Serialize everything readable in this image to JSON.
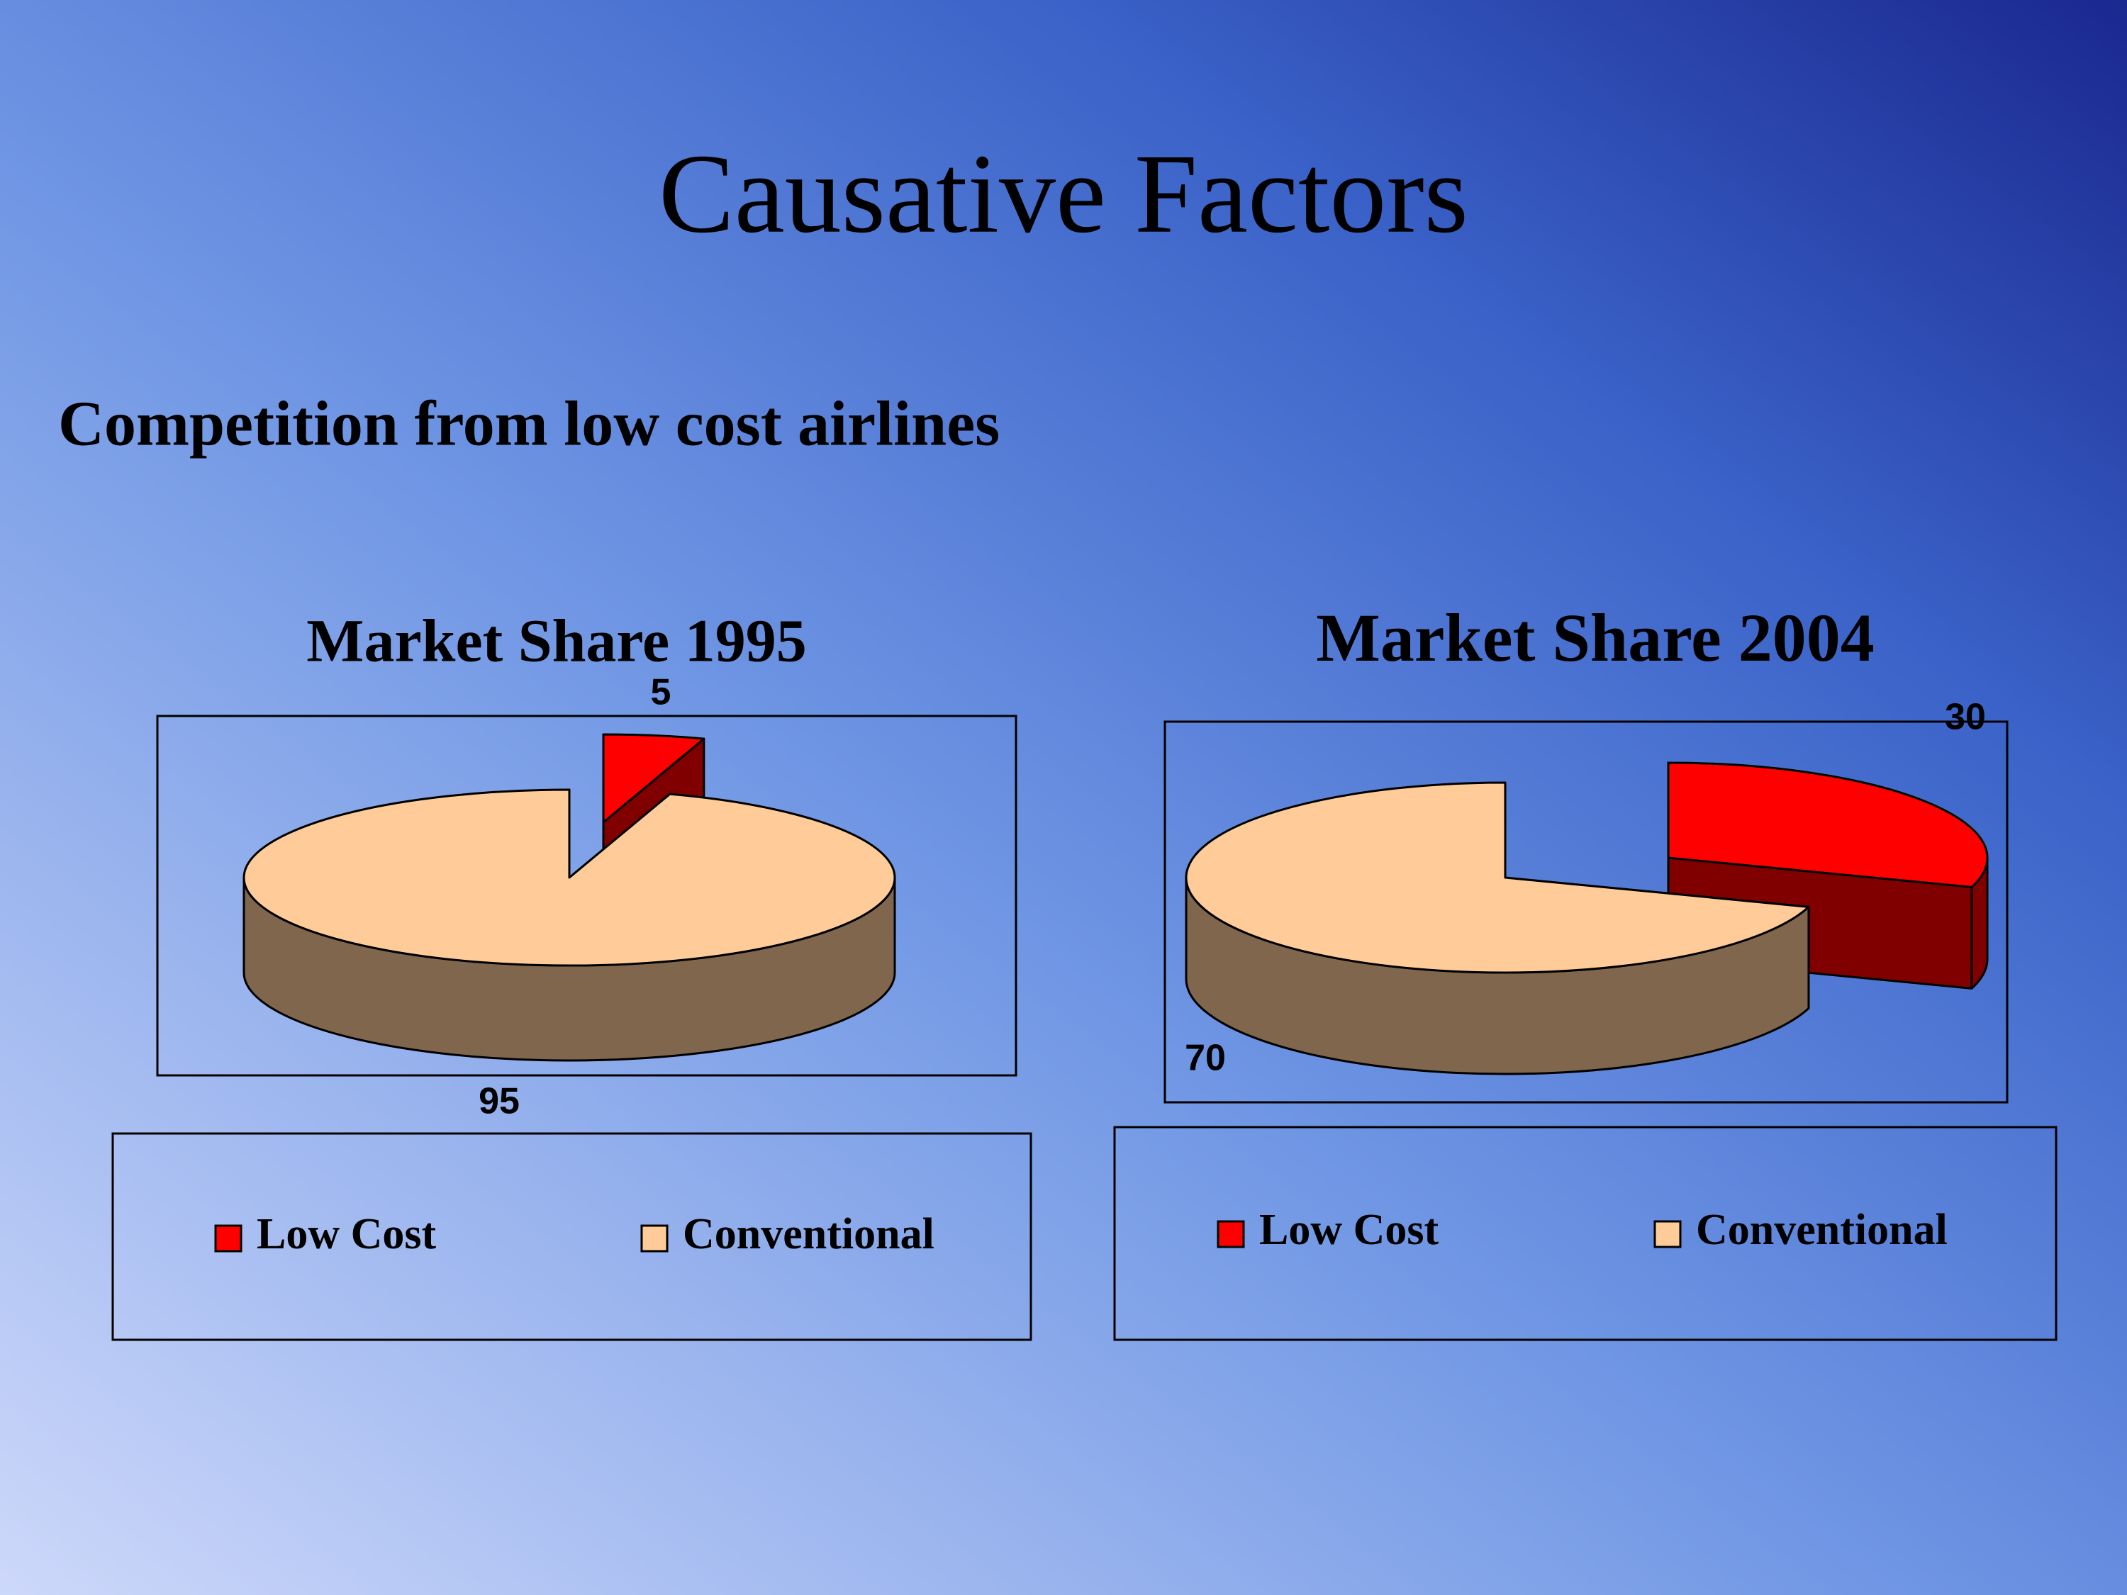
{
  "slide": {
    "title": "Causative Factors",
    "subtitle": "Competition from low cost airlines"
  },
  "chart_data": [
    {
      "type": "pie",
      "title": "Market Share 1995",
      "categories": [
        "Low Cost",
        "Conventional"
      ],
      "values": [
        5,
        95
      ],
      "colors": [
        "#ff0000",
        "#ffcc99"
      ]
    },
    {
      "type": "pie",
      "title": "Market Share 2004",
      "categories": [
        "Low Cost",
        "Conventional"
      ],
      "values": [
        30,
        70
      ],
      "colors": [
        "#ff0000",
        "#ffcc99"
      ]
    }
  ]
}
